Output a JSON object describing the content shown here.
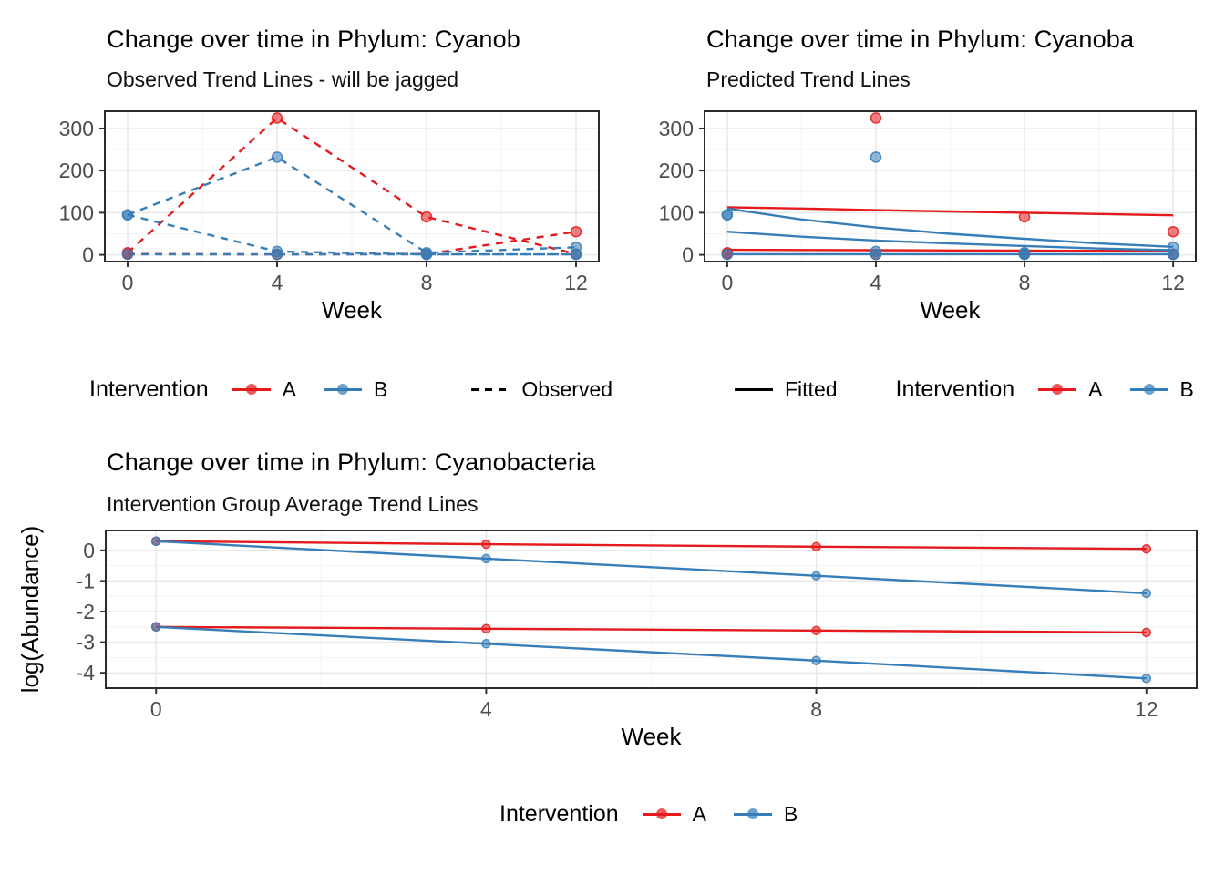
{
  "colors": {
    "a": "#E41A1C",
    "b": "#377EB8",
    "black_line": "#000000",
    "grid_major": "#E8E8E8",
    "grid_minor": "#F4F4F4",
    "panel_border": "#2B2B2B",
    "tick": "#333333",
    "axis_text": "#4D4D4D",
    "title_text": "#000000"
  },
  "chart_data": [
    {
      "type": "line",
      "title": "Change over time in Phylum: Cyanob",
      "subtitle": "Observed Trend Lines - will be jagged",
      "xlabel": "Week",
      "ylabel": "",
      "x": [
        0,
        4,
        8,
        12
      ],
      "xlim": [
        -0.61,
        12.61
      ],
      "ylim": [
        -16,
        341
      ],
      "xticks": [
        0,
        4,
        8,
        12
      ],
      "yticks": [
        0,
        100,
        200,
        300
      ],
      "xminor": [
        2,
        6,
        10
      ],
      "yminor": [
        50,
        150,
        250
      ],
      "grid": true,
      "legend_position": "bottom",
      "legend": {
        "title": "Intervention",
        "a": "A",
        "b": "B",
        "linetype": "Observed"
      },
      "series": [
        {
          "name": "A subject 1 observed",
          "group": "A",
          "color": "a",
          "style": "dashed",
          "points": true,
          "values": [
            5,
            325,
            90,
            2
          ]
        },
        {
          "name": "A subject 2 observed",
          "group": "A",
          "color": "a",
          "style": "dashed",
          "points": true,
          "values": [
            2,
            1,
            2,
            55
          ]
        },
        {
          "name": "B subject 1 observed",
          "group": "B",
          "color": "b",
          "style": "dashed",
          "points": true,
          "values": [
            95,
            232,
            5,
            18
          ]
        },
        {
          "name": "B subject 2 observed",
          "group": "B",
          "color": "b",
          "style": "dashed",
          "points": true,
          "values": [
            95,
            8,
            1,
            1
          ]
        },
        {
          "name": "B subject 3 observed",
          "group": "B",
          "color": "b",
          "style": "dashed",
          "points": true,
          "values": [
            1,
            1,
            1,
            1
          ]
        }
      ]
    },
    {
      "type": "line",
      "title": "Change over time in Phylum: Cyanoba",
      "subtitle": "Predicted Trend Lines",
      "xlabel": "Week",
      "ylabel": "",
      "x": [
        0,
        4,
        8,
        12
      ],
      "xlim": [
        -0.61,
        12.61
      ],
      "ylim": [
        -16,
        341
      ],
      "xticks": [
        0,
        4,
        8,
        12
      ],
      "yticks": [
        0,
        100,
        200,
        300
      ],
      "xminor": [
        2,
        6,
        10
      ],
      "yminor": [
        50,
        150,
        250
      ],
      "grid": true,
      "legend_position": "bottom",
      "legend": {
        "linetype": "Fitted",
        "title": "Intervention",
        "a": "A",
        "b": "B"
      },
      "series": [
        {
          "name": "A subject 1 observed",
          "group": "A",
          "color": "a",
          "style": "none",
          "points": true,
          "values": [
            5,
            325,
            90,
            2
          ]
        },
        {
          "name": "A subject 2 observed",
          "group": "A",
          "color": "a",
          "style": "none",
          "points": true,
          "values": [
            2,
            1,
            2,
            55
          ]
        },
        {
          "name": "B subject 1 observed",
          "group": "B",
          "color": "b",
          "style": "none",
          "points": true,
          "values": [
            95,
            232,
            5,
            18
          ]
        },
        {
          "name": "B subject 2 observed",
          "group": "B",
          "color": "b",
          "style": "none",
          "points": true,
          "values": [
            95,
            8,
            1,
            1
          ]
        },
        {
          "name": "B subject 3 observed",
          "group": "B",
          "color": "b",
          "style": "none",
          "points": true,
          "values": [
            1,
            1,
            1,
            1
          ]
        },
        {
          "name": "A subject 1 fitted",
          "group": "A",
          "color": "a",
          "style": "solid",
          "points": false,
          "x": [
            0,
            2,
            4,
            6,
            8,
            10,
            12
          ],
          "values": [
            113,
            110,
            106,
            103,
            100,
            97,
            94
          ]
        },
        {
          "name": "A subject 2 fitted",
          "group": "A",
          "color": "a",
          "style": "solid",
          "points": false,
          "x": [
            0,
            2,
            4,
            6,
            8,
            10,
            12
          ],
          "values": [
            12,
            11.5,
            11,
            10.5,
            10,
            9.5,
            9
          ]
        },
        {
          "name": "B subject 1 fitted",
          "group": "B",
          "color": "b",
          "style": "solid",
          "points": false,
          "x": [
            0,
            2,
            4,
            6,
            8,
            10,
            12
          ],
          "values": [
            110,
            84,
            65,
            50,
            38,
            27,
            19
          ]
        },
        {
          "name": "B subject 2 fitted",
          "group": "B",
          "color": "b",
          "style": "solid",
          "points": false,
          "x": [
            0,
            2,
            4,
            6,
            8,
            10,
            12
          ],
          "values": [
            55,
            43,
            34,
            27,
            21,
            15,
            11
          ]
        },
        {
          "name": "B subject 3 fitted",
          "group": "B",
          "color": "b",
          "style": "solid",
          "points": false,
          "x": [
            0,
            2,
            4,
            6,
            8,
            10,
            12
          ],
          "values": [
            1.5,
            1.5,
            1.5,
            1.5,
            1.5,
            1.5,
            1.5
          ]
        }
      ]
    },
    {
      "type": "line",
      "title": "Change over time in Phylum: Cyanobacteria",
      "subtitle": "Intervention Group Average Trend Lines",
      "xlabel": "Week",
      "ylabel": "log(Abundance)",
      "x": [
        0,
        4,
        8,
        12
      ],
      "xlim": [
        -0.61,
        12.61
      ],
      "ylim": [
        -4.5,
        0.65
      ],
      "xticks": [
        0,
        4,
        8,
        12
      ],
      "yticks": [
        0,
        -1,
        -2,
        -3,
        -4
      ],
      "xminor": [
        2,
        6,
        10
      ],
      "yminor": [
        0.5,
        -0.5,
        -1.5,
        -2.5,
        -3.5
      ],
      "grid": true,
      "legend_position": "bottom",
      "legend": {
        "title": "Intervention",
        "a": "A",
        "b": "B"
      },
      "series": [
        {
          "name": "A group average upper",
          "group": "A",
          "color": "a",
          "style": "solid",
          "points": true,
          "values": [
            0.3,
            0.2,
            0.12,
            0.05
          ]
        },
        {
          "name": "B group average upper",
          "group": "B",
          "color": "b",
          "style": "solid",
          "points": true,
          "values": [
            0.3,
            -0.27,
            -0.83,
            -1.4
          ]
        },
        {
          "name": "A group average lower",
          "group": "A",
          "color": "a",
          "style": "solid",
          "points": true,
          "values": [
            -2.5,
            -2.56,
            -2.62,
            -2.68
          ]
        },
        {
          "name": "B group average lower",
          "group": "B",
          "color": "b",
          "style": "solid",
          "points": true,
          "values": [
            -2.5,
            -3.05,
            -3.6,
            -4.18
          ]
        }
      ]
    }
  ]
}
